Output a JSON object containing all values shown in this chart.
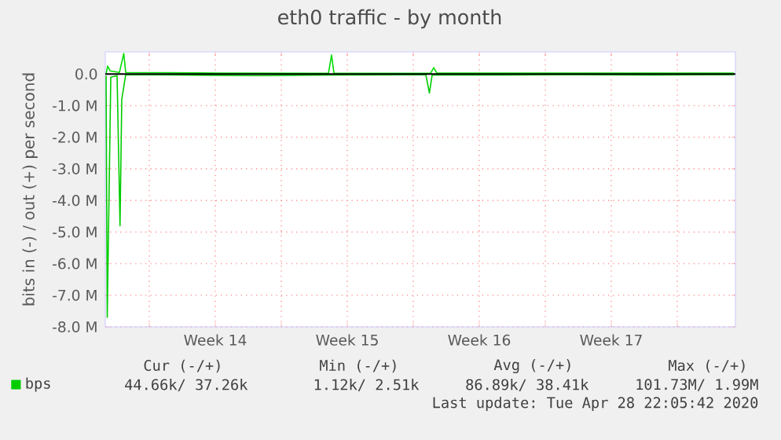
{
  "chart_data": {
    "type": "line",
    "title": "eth0 traffic - by month",
    "ylabel": "bits in (-) / out (+) per second",
    "xlim": [
      "2020-03-27T16:00",
      "2020-04-30T02:00"
    ],
    "ylim": [
      -8.0,
      0.7
    ],
    "xticks": [
      {
        "value": "2020-03-30",
        "label": null
      },
      {
        "value": "2020-04-02T12:00",
        "label": "Week 14"
      },
      {
        "value": "2020-04-06",
        "label": null
      },
      {
        "value": "2020-04-09T12:00",
        "label": "Week 15"
      },
      {
        "value": "2020-04-13",
        "label": null
      },
      {
        "value": "2020-04-16T12:00",
        "label": "Week 16"
      },
      {
        "value": "2020-04-20",
        "label": null
      },
      {
        "value": "2020-04-23T12:00",
        "label": "Week 17"
      },
      {
        "value": "2020-04-27",
        "label": null
      }
    ],
    "yticks": [
      {
        "value": 0,
        "label": "0.0"
      },
      {
        "value": -1,
        "label": "-1.0 M"
      },
      {
        "value": -2,
        "label": "-2.0 M"
      },
      {
        "value": -3,
        "label": "-3.0 M"
      },
      {
        "value": -4,
        "label": "-4.0 M"
      },
      {
        "value": -5,
        "label": "-5.0 M"
      },
      {
        "value": -6,
        "label": "-6.0 M"
      },
      {
        "value": -7,
        "label": "-7.0 M"
      },
      {
        "value": -8,
        "label": "-8.0 M"
      }
    ],
    "grid": true,
    "legend": "bottom left",
    "series": [
      {
        "name": "bps",
        "color": "#00cc00",
        "x": [
          "2020-03-27T17:00",
          "2020-03-27T18:30",
          "2020-03-27T23:00",
          "2020-03-28T07:00",
          "2020-03-28T10:45",
          "2020-03-28T13:00",
          "2020-03-28T18:00",
          "2020-03-31T16:00",
          "2020-04-04T16:00",
          "2020-04-08T16:00",
          "2020-04-13T16:00",
          "2020-04-13T20:30",
          "2020-04-14T00:00",
          "2020-04-17T16:00",
          "2020-04-21T16:00",
          "2020-04-25T16:00",
          "2020-04-30T00:00"
        ],
        "values": [
          -0.05,
          -7.7,
          -0.1,
          -0.05,
          -4.8,
          -0.8,
          -0.02,
          -0.03,
          -0.05,
          -0.03,
          -0.02,
          -0.6,
          -0.03,
          -0.03,
          -0.02,
          -0.03,
          -0.02
        ]
      },
      {
        "color": "#00dd00",
        "x": [
          "2020-03-27T17:00",
          "2020-03-27T19:00",
          "2020-03-27T22:00",
          "2020-03-28T10:00",
          "2020-03-28T15:30",
          "2020-03-28T18:00",
          "2020-04-02T16:00",
          "2020-04-08T12:00",
          "2020-04-08T16:00",
          "2020-04-08T19:00",
          "2020-04-13T22:00",
          "2020-04-14T02:00",
          "2020-04-14T06:00",
          "2020-04-21T16:00",
          "2020-04-30T00:00"
        ],
        "values": [
          0.0,
          0.25,
          0.1,
          0.05,
          0.65,
          0.05,
          0.03,
          0.02,
          0.6,
          0.03,
          0.02,
          0.2,
          0.03,
          0.03,
          0.03
        ]
      }
    ],
    "ref_lines": [
      {
        "axis": "y",
        "value": 0,
        "color": "#000000"
      }
    ],
    "annotations": [
      "Cur (-/+)",
      "Min (-/+)",
      "Avg (-/+)",
      "Max (-/+)",
      "44.66k/ 37.26k",
      "1.12k/   2.51k",
      "86.89k/ 38.41k",
      "101.73M/   1.99M",
      "Last update: Tue Apr 28 22:05:42 2020"
    ]
  }
}
